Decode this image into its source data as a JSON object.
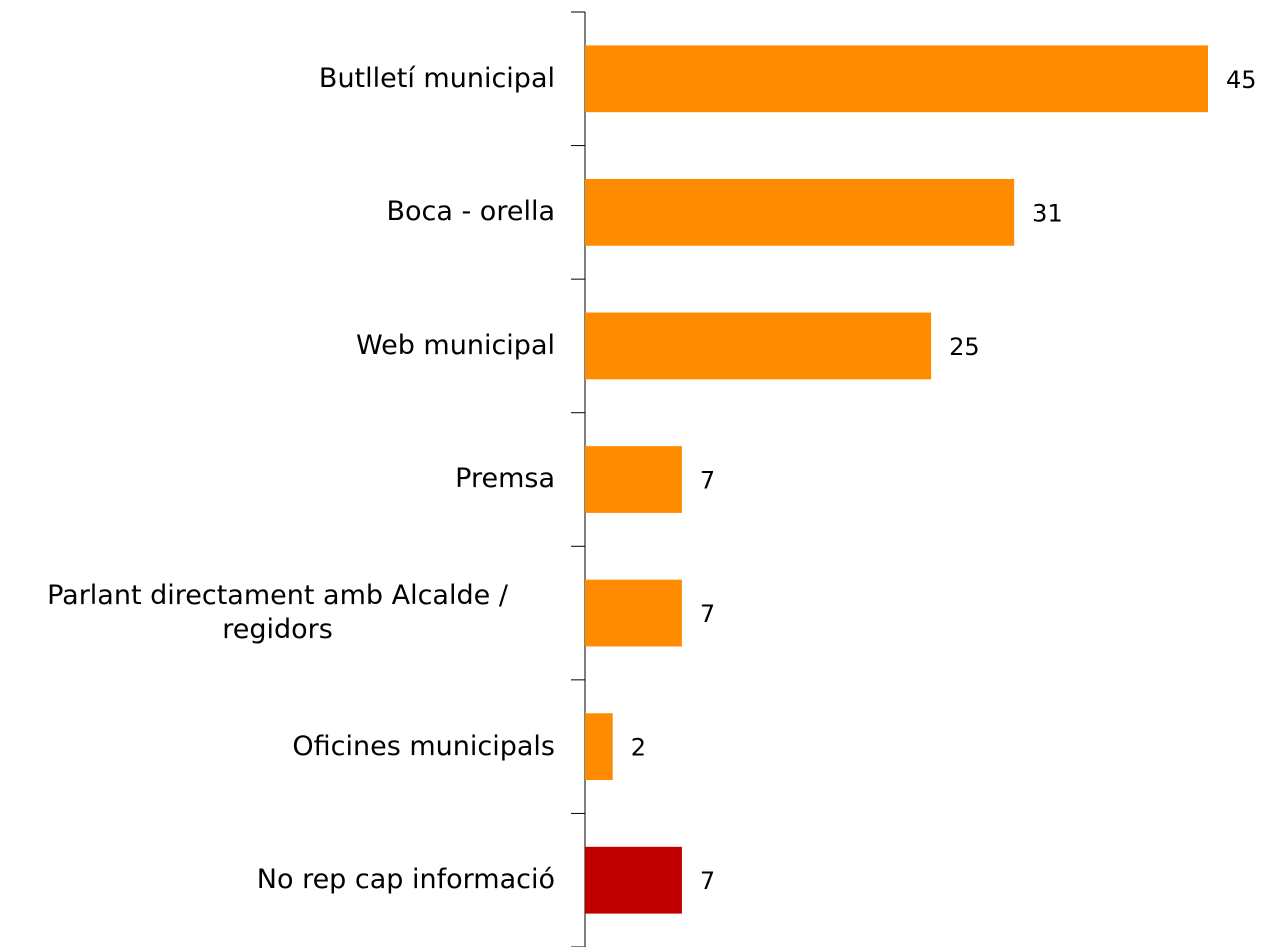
{
  "chart_data": {
    "type": "bar",
    "orientation": "horizontal",
    "categories": [
      "Butlletí municipal",
      "Boca - orella",
      "Web municipal",
      "Premsa",
      "Parlant directament amb Alcalde / regidors",
      "Oficines municipals",
      "No rep cap informació"
    ],
    "values": [
      45,
      31,
      25,
      7,
      7,
      2,
      7
    ],
    "colors": [
      "#ff8c00",
      "#ff8c00",
      "#ff8c00",
      "#ff8c00",
      "#ff8c00",
      "#ff8c00",
      "#c00000"
    ]
  }
}
